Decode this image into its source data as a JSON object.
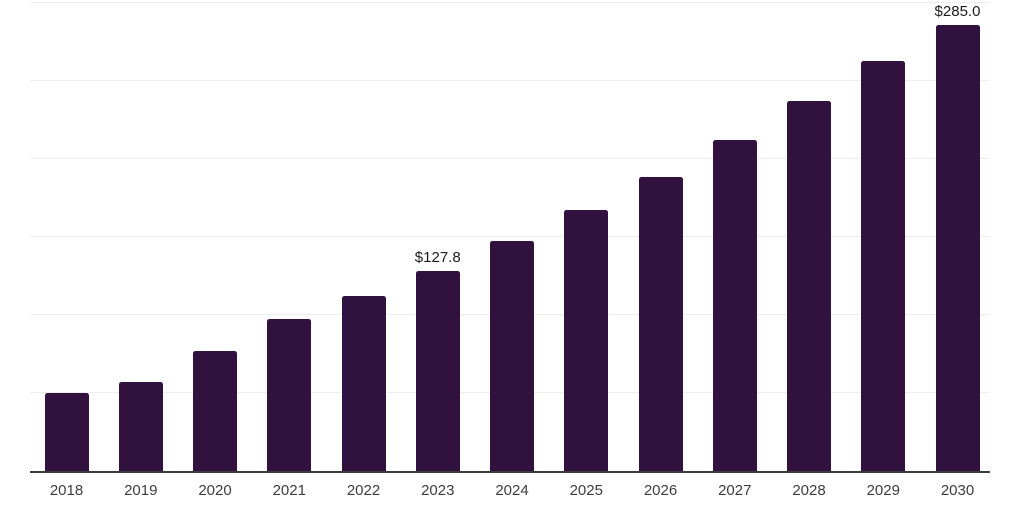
{
  "chart_data": {
    "type": "bar",
    "title": "",
    "xlabel": "",
    "ylabel": "",
    "ylim": [
      0,
      300
    ],
    "gridline_values": [
      50,
      100,
      150,
      200,
      250,
      300
    ],
    "grid": "horizontal-only",
    "legend": "none",
    "colors": {
      "bar": "#31123F",
      "gridline": "#EDEDED",
      "axis": "#3C3C3C",
      "x_tick_label": "#3D3D3D",
      "data_label": "#1C1C1C",
      "background": "#FFFFFF"
    },
    "categories": [
      "2018",
      "2019",
      "2020",
      "2021",
      "2022",
      "2023",
      "2024",
      "2025",
      "2026",
      "2027",
      "2028",
      "2029",
      "2030"
    ],
    "values": [
      50,
      57,
      77,
      97,
      112,
      127.8,
      147,
      167,
      188,
      212,
      237,
      262,
      285
    ],
    "bars": [
      {
        "year": "2018",
        "value": 50
      },
      {
        "year": "2019",
        "value": 57
      },
      {
        "year": "2020",
        "value": 77
      },
      {
        "year": "2021",
        "value": 97
      },
      {
        "year": "2022",
        "value": 112
      },
      {
        "year": "2023",
        "value": 127.8,
        "label": "$127.8"
      },
      {
        "year": "2024",
        "value": 147
      },
      {
        "year": "2025",
        "value": 167
      },
      {
        "year": "2026",
        "value": 188
      },
      {
        "year": "2027",
        "value": 212
      },
      {
        "year": "2028",
        "value": 237
      },
      {
        "year": "2029",
        "value": 262
      },
      {
        "year": "2030",
        "value": 285,
        "label": "$285.0"
      }
    ]
  }
}
